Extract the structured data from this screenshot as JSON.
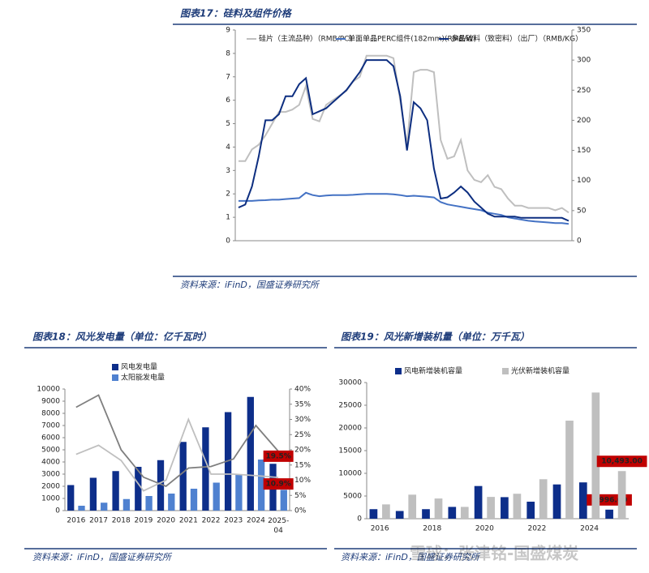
{
  "figures": [
    {
      "title": "图表17：硅料及组件价格",
      "source": "资料来源：iFinD，国盛证券研究所"
    },
    {
      "title": "图表18：风光发电量（单位：亿千瓦时）",
      "source": "资料来源：iFinD，国盛证券研究所"
    },
    {
      "title": "图表19：风光新增装机量（单位：万千瓦）",
      "source": "资料来源：iFinD，国盛证券研究所"
    }
  ],
  "watermark": "雪球：张津铭-国盛煤炭",
  "chart_data": [
    {
      "type": "line",
      "ylim": [
        0,
        9
      ],
      "yticks": [
        0,
        1,
        2,
        3,
        4,
        5,
        6,
        7,
        8,
        9
      ],
      "y2lim": [
        0,
        350
      ],
      "y2ticks": [
        0,
        50,
        100,
        150,
        200,
        250,
        300,
        350
      ],
      "series": [
        {
          "name": "硅片（主流品种）（RMB/PC）",
          "color": "#bfbfbf",
          "values": [
            3.4,
            3.4,
            3.9,
            4.1,
            4.5,
            5.0,
            5.5,
            5.5,
            5.6,
            5.8,
            6.6,
            5.2,
            5.1,
            5.8,
            6.0,
            6.2,
            6.4,
            6.8,
            7.0,
            7.9,
            7.9,
            7.9,
            7.9,
            7.8,
            6.0,
            4.1,
            7.2,
            7.3,
            7.3,
            7.2,
            4.3,
            3.5,
            3.6,
            4.3,
            3.0,
            2.6,
            2.5,
            2.8,
            2.3,
            2.2,
            1.8,
            1.5,
            1.5,
            1.4,
            1.4,
            1.4,
            1.4,
            1.3,
            1.4,
            1.2
          ]
        },
        {
          "name": "单面单晶PERC组件(182mm)(RMB/W)",
          "color": "#4472c4",
          "values": [
            1.7,
            1.7,
            1.7,
            1.72,
            1.73,
            1.75,
            1.75,
            1.78,
            1.8,
            1.82,
            2.05,
            1.95,
            1.9,
            1.93,
            1.95,
            1.95,
            1.95,
            1.96,
            1.98,
            2.0,
            2.0,
            2.0,
            2.0,
            1.98,
            1.95,
            1.9,
            1.92,
            1.9,
            1.88,
            1.85,
            1.65,
            1.55,
            1.5,
            1.45,
            1.4,
            1.35,
            1.3,
            1.2,
            1.15,
            1.1,
            1.0,
            0.95,
            0.9,
            0.85,
            0.82,
            0.8,
            0.78,
            0.75,
            0.75,
            0.72
          ]
        },
        {
          "name": "多晶硅料（致密料）（出厂）（RMB/KG）",
          "color": "#0d2e80",
          "axis": "y2",
          "values": [
            55,
            60,
            90,
            140,
            200,
            200,
            210,
            240,
            240,
            260,
            270,
            210,
            215,
            220,
            230,
            240,
            250,
            265,
            280,
            300,
            300,
            300,
            300,
            290,
            240,
            150,
            230,
            220,
            200,
            120,
            70,
            72,
            80,
            90,
            80,
            65,
            55,
            45,
            40,
            40,
            40,
            40,
            38,
            38,
            38,
            38,
            38,
            38,
            38,
            33
          ]
        }
      ]
    },
    {
      "type": "bar",
      "categories": [
        "2016",
        "2017",
        "2018",
        "2019",
        "2020",
        "2021",
        "2022",
        "2023",
        "2024",
        "2025-04"
      ],
      "ylim": [
        0,
        10000
      ],
      "yticks": [
        0,
        1000,
        2000,
        3000,
        4000,
        5000,
        6000,
        7000,
        8000,
        9000,
        10000
      ],
      "y2lim": [
        0,
        40
      ],
      "y2ticks": [
        {
          "value": 0,
          "label": "0%"
        },
        {
          "value": 5,
          "label": "5%"
        },
        {
          "value": 10,
          "label": "10%"
        },
        {
          "value": 15,
          "label": "15%"
        },
        {
          "value": 20,
          "label": "20%"
        },
        {
          "value": 25,
          "label": "25%"
        },
        {
          "value": 30,
          "label": "30%"
        },
        {
          "value": 35,
          "label": "35%"
        },
        {
          "value": 40,
          "label": "40%"
        }
      ],
      "series": [
        {
          "name": "风电发电量",
          "color": "#0d2e8a",
          "values": [
            2100,
            2700,
            3250,
            3600,
            4150,
            5650,
            6850,
            8100,
            9350,
            3850
          ]
        },
        {
          "name": "太阳能发电量",
          "color": "#4f81d0",
          "values": [
            400,
            650,
            950,
            1200,
            1400,
            1800,
            2300,
            3000,
            4200,
            1700
          ]
        },
        {
          "type": "line",
          "axis": "y2",
          "color": "#7f7f7f",
          "values": [
            34,
            38,
            20,
            11,
            8,
            14,
            14.5,
            17,
            28,
            19.5
          ],
          "value_labels": [
            null,
            null,
            null,
            null,
            null,
            null,
            null,
            null,
            null,
            "19.5%"
          ]
        },
        {
          "type": "line",
          "axis": "y2",
          "color": "#bfbfbf",
          "values": [
            18.5,
            21.5,
            16.5,
            6.5,
            10,
            30,
            12,
            12,
            11.5,
            10.9
          ],
          "value_labels": [
            null,
            null,
            null,
            null,
            null,
            null,
            null,
            null,
            null,
            "10.9%"
          ]
        }
      ]
    },
    {
      "type": "bar",
      "categories": [
        "2016",
        null,
        "2018",
        null,
        "2020",
        null,
        "2022",
        null,
        "2024",
        null
      ],
      "ylim": [
        0,
        30000
      ],
      "yticks": [
        0,
        5000,
        10000,
        15000,
        20000,
        25000,
        30000
      ],
      "series": [
        {
          "name": "风电新增装机容量",
          "color": "#0d2e8a",
          "values": [
            2100,
            1700,
            2100,
            2600,
            7200,
            4750,
            3750,
            7550,
            8000,
            1996
          ],
          "value_labels": [
            null,
            null,
            null,
            null,
            null,
            null,
            null,
            null,
            null,
            "1,996.00"
          ]
        },
        {
          "name": "光伏新增装机容量",
          "color": "#bfbfbf",
          "values": [
            3150,
            5300,
            4450,
            2600,
            4800,
            5500,
            8700,
            21600,
            27800,
            10493
          ],
          "value_labels": [
            null,
            null,
            null,
            null,
            null,
            null,
            null,
            null,
            null,
            "10,493.00"
          ]
        }
      ]
    }
  ]
}
